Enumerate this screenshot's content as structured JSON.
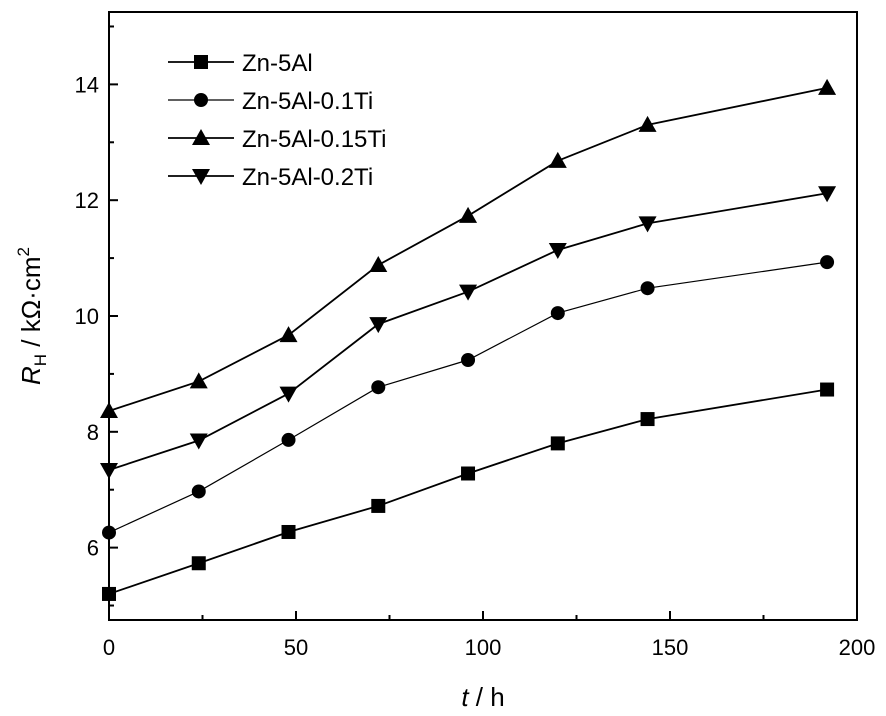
{
  "chart_data": {
    "type": "line",
    "xlabel": {
      "var": "t",
      "unit": " / h"
    },
    "ylabel": {
      "var": "R",
      "sub": "H",
      "unit": " / kΩ·cm",
      "sup": "2"
    },
    "xlim": [
      0,
      200
    ],
    "ylim": [
      4.75,
      15.25
    ],
    "xticks": [
      0,
      50,
      100,
      150,
      200
    ],
    "yticks": [
      6,
      8,
      10,
      12,
      14
    ],
    "grid": false,
    "legend_position": "top-left",
    "x": [
      0,
      24,
      48,
      72,
      96,
      120,
      144,
      192
    ],
    "series": [
      {
        "name": "Zn-5Al",
        "marker": "square",
        "values": [
          5.2,
          5.73,
          6.27,
          6.72,
          7.28,
          7.8,
          8.22,
          8.73
        ]
      },
      {
        "name": "Zn-5Al-0.1Ti",
        "marker": "circle",
        "values": [
          6.26,
          6.97,
          7.86,
          8.77,
          9.24,
          10.05,
          10.48,
          10.93
        ]
      },
      {
        "name": "Zn-5Al-0.15Ti",
        "marker": "triangle-up",
        "values": [
          8.36,
          8.87,
          9.67,
          10.88,
          11.73,
          12.68,
          13.3,
          13.94
        ]
      },
      {
        "name": "Zn-5Al-0.2Ti",
        "marker": "triangle-down",
        "values": [
          7.34,
          7.85,
          8.66,
          9.86,
          10.42,
          11.14,
          11.6,
          12.12
        ]
      }
    ]
  }
}
